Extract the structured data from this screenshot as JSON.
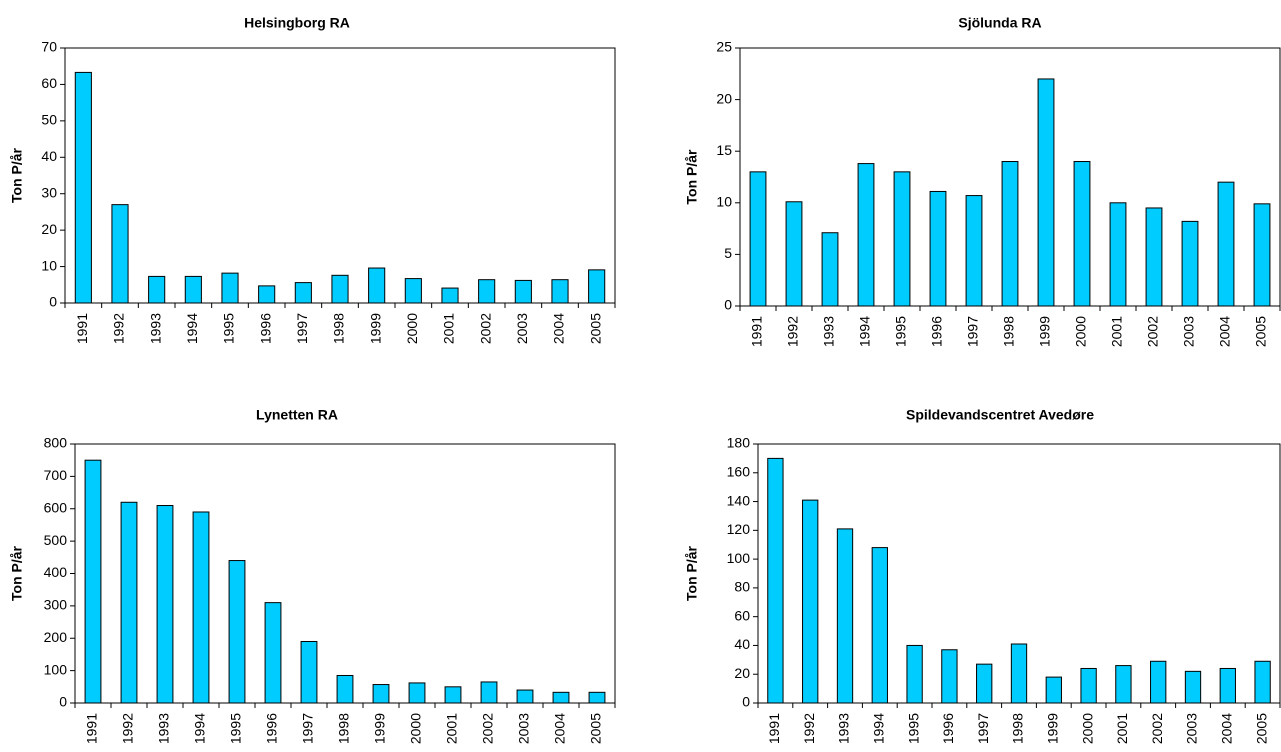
{
  "chart_data": [
    {
      "type": "bar",
      "title": "Helsingborg RA",
      "y_label": "Ton P/år",
      "categories": [
        "1991",
        "1992",
        "1993",
        "1994",
        "1995",
        "1996",
        "1997",
        "1998",
        "1999",
        "2000",
        "2001",
        "2002",
        "2003",
        "2004",
        "2005"
      ],
      "values": [
        63.3,
        27,
        7.3,
        7.3,
        8.2,
        4.7,
        5.6,
        7.6,
        9.6,
        6.7,
        4.1,
        6.4,
        6.2,
        6.4,
        9.1
      ],
      "color": "#00ccff",
      "ylim": [
        0,
        70
      ],
      "yticks": [
        0,
        10,
        20,
        30,
        40,
        50,
        60,
        70
      ]
    },
    {
      "type": "bar",
      "title": "Sjölunda RA",
      "y_label": "Ton P/år",
      "categories": [
        "1991",
        "1992",
        "1993",
        "1994",
        "1995",
        "1996",
        "1997",
        "1998",
        "1999",
        "2000",
        "2001",
        "2002",
        "2003",
        "2004",
        "2005"
      ],
      "values": [
        13,
        10.1,
        7.1,
        13.8,
        13,
        11.1,
        10.7,
        14,
        22,
        14,
        10,
        9.5,
        8.2,
        12,
        9.9
      ],
      "color": "#00ccff",
      "ylim": [
        0,
        25
      ],
      "yticks": [
        0,
        5,
        10,
        15,
        20,
        25
      ]
    },
    {
      "type": "bar",
      "title": "Lynetten RA",
      "y_label": "Ton P/år",
      "categories": [
        "1991",
        "1992",
        "1993",
        "1994",
        "1995",
        "1996",
        "1997",
        "1998",
        "1999",
        "2000",
        "2001",
        "2002",
        "2003",
        "2004",
        "2005"
      ],
      "values": [
        750,
        620,
        610,
        590,
        440,
        310,
        190,
        85,
        57,
        62,
        50,
        65,
        40,
        33,
        33
      ],
      "color": "#00ccff",
      "ylim": [
        0,
        800
      ],
      "yticks": [
        0,
        100,
        200,
        300,
        400,
        500,
        600,
        700,
        800
      ]
    },
    {
      "type": "bar",
      "title": "Spildevandscentret Avedøre",
      "y_label": "Ton P/år",
      "categories": [
        "1991",
        "1992",
        "1993",
        "1994",
        "1995",
        "1996",
        "1997",
        "1998",
        "1999",
        "2000",
        "2001",
        "2002",
        "2003",
        "2004",
        "2005"
      ],
      "values": [
        170,
        141,
        121,
        108,
        40,
        37,
        27,
        41,
        18,
        24,
        26,
        29,
        22,
        24,
        29
      ],
      "color": "#00ccff",
      "ylim": [
        0,
        180
      ],
      "yticks": [
        0,
        20,
        40,
        60,
        80,
        100,
        120,
        140,
        160,
        180
      ]
    }
  ]
}
